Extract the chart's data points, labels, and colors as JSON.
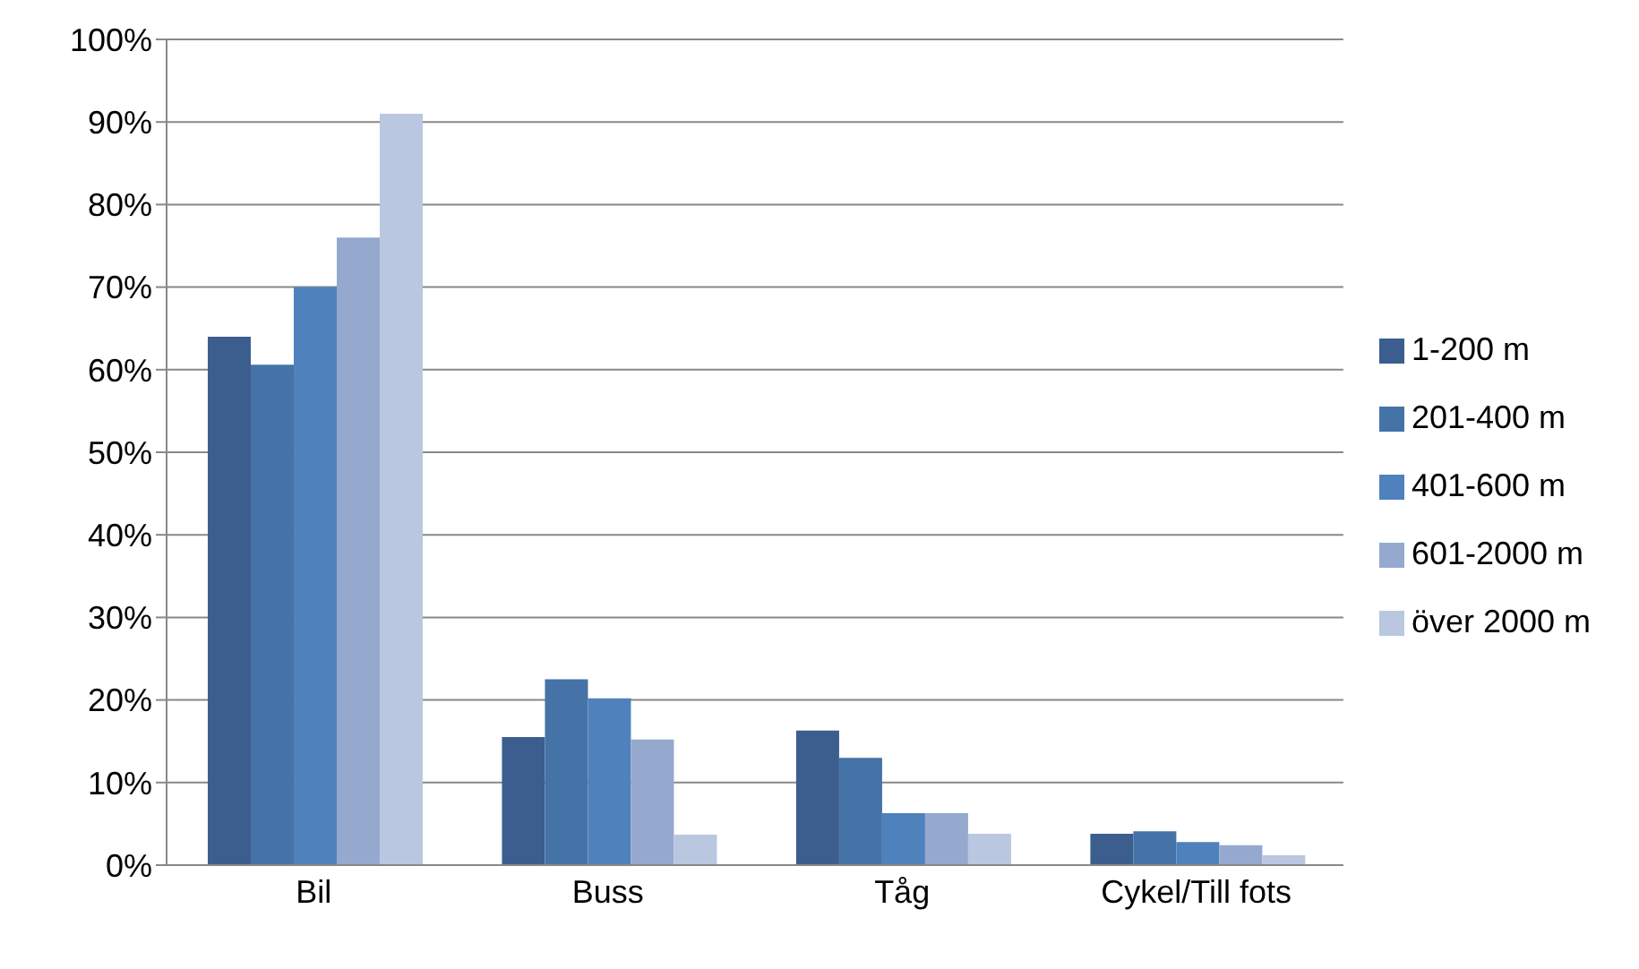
{
  "chart_data": {
    "type": "bar",
    "categories": [
      "Bil",
      "Buss",
      "Tåg",
      "Cykel/Till fots"
    ],
    "series": [
      {
        "name": "1-200 m",
        "color": "#3b5e8f",
        "values": [
          64,
          15.5,
          16.3,
          3.8
        ]
      },
      {
        "name": "201-400 m",
        "color": "#4572a7",
        "values": [
          60.6,
          22.5,
          13,
          4.1
        ]
      },
      {
        "name": "401-600 m",
        "color": "#4f81bd",
        "values": [
          70,
          20.2,
          6.3,
          2.8
        ]
      },
      {
        "name": "601-2000 m",
        "color": "#95a9cf",
        "values": [
          76,
          15.2,
          6.3,
          2.4
        ]
      },
      {
        "name": "över 2000 m",
        "color": "#b9c7e1",
        "values": [
          91,
          3.7,
          3.8,
          1.2
        ]
      }
    ],
    "ylim": [
      0,
      100
    ],
    "yticks": [
      {
        "value": 0,
        "label": "0%"
      },
      {
        "value": 10,
        "label": "10%"
      },
      {
        "value": 20,
        "label": "20%"
      },
      {
        "value": 30,
        "label": "30%"
      },
      {
        "value": 40,
        "label": "40%"
      },
      {
        "value": 50,
        "label": "50%"
      },
      {
        "value": 60,
        "label": "60%"
      },
      {
        "value": 70,
        "label": "70%"
      },
      {
        "value": 80,
        "label": "80%"
      },
      {
        "value": 90,
        "label": "90%"
      },
      {
        "value": 100,
        "label": "100%"
      }
    ],
    "grid": "y",
    "legend": "right"
  }
}
